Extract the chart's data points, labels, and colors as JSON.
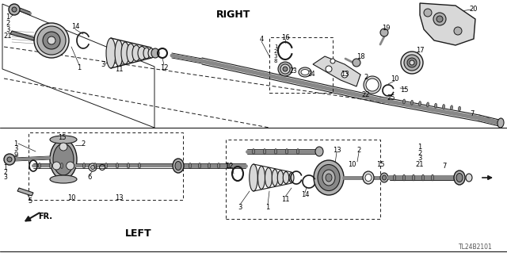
{
  "bg_color": "#ffffff",
  "lc": "#1a1a1a",
  "gray1": "#d8d8d8",
  "gray2": "#b0b0b0",
  "gray3": "#888888",
  "gray4": "#606060",
  "figsize": [
    6.4,
    3.19
  ],
  "dpi": 100,
  "label_right": "RIGHT",
  "label_left": "LEFT",
  "label_fr": "FR.",
  "part_id": "TL24B2101"
}
